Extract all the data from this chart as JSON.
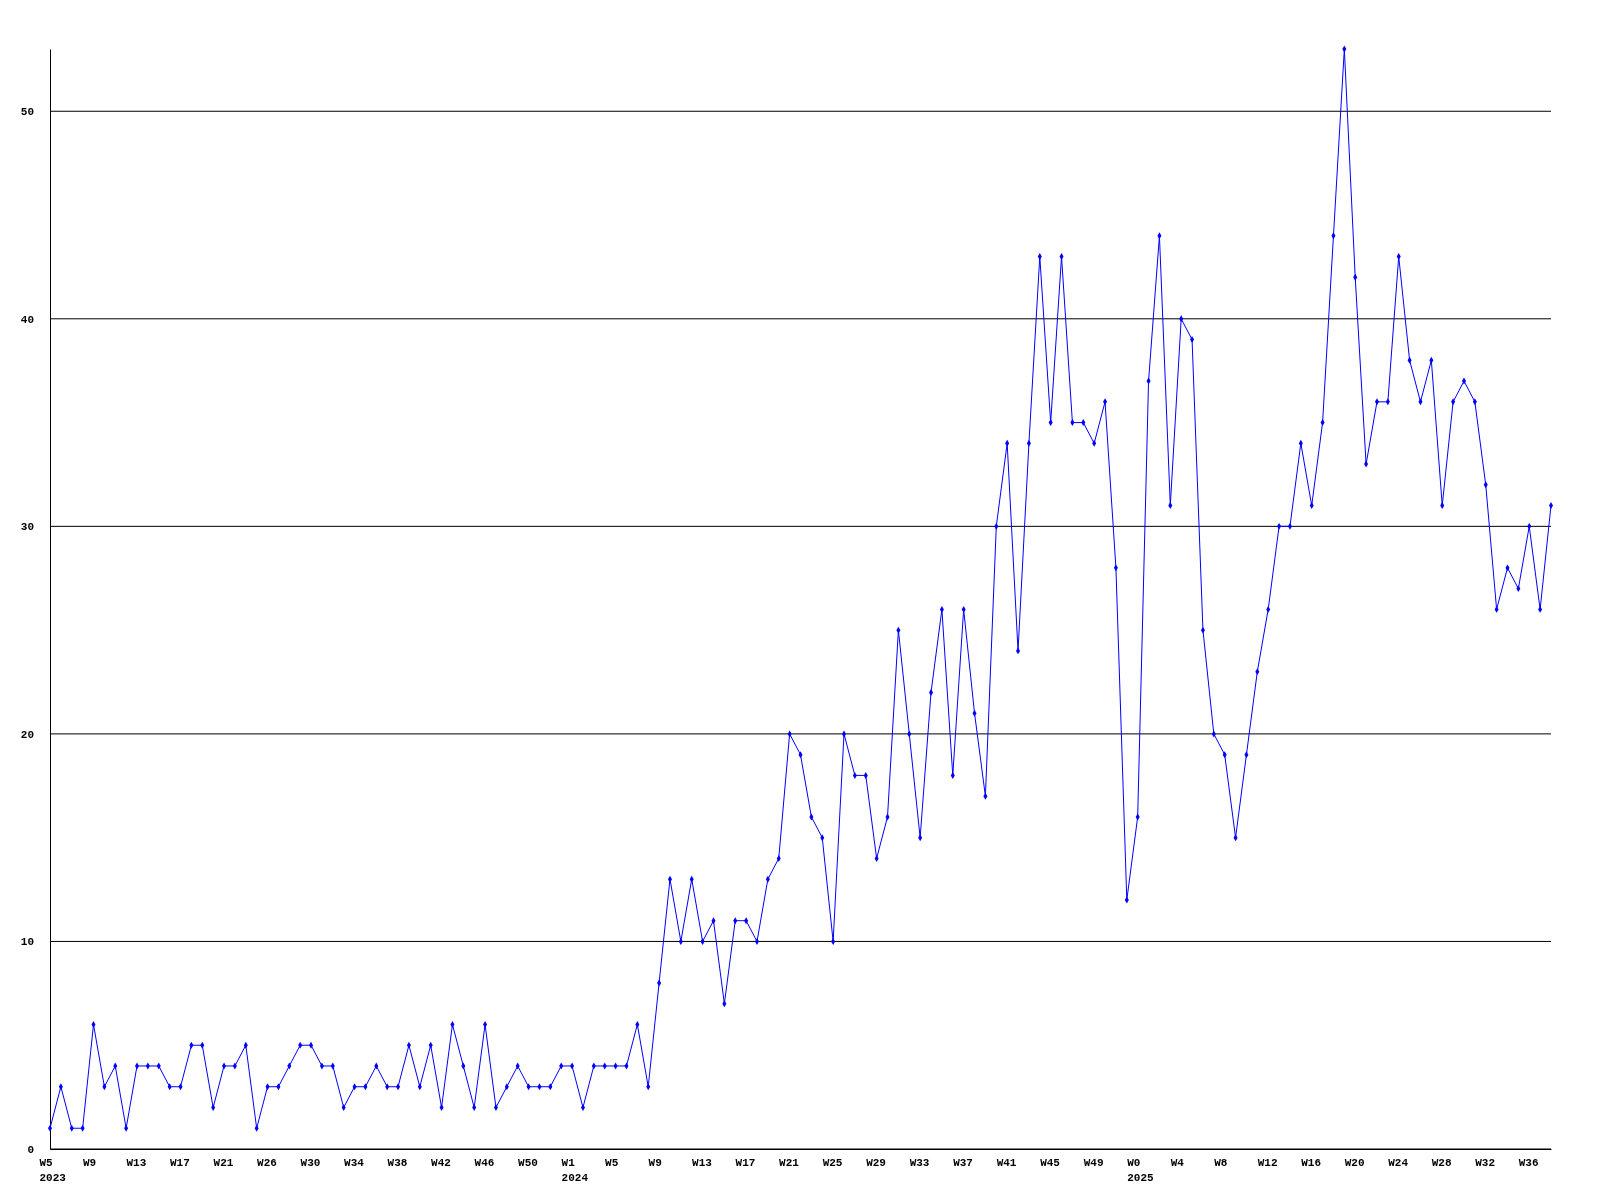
{
  "chart_data": {
    "type": "line",
    "categories": [
      "W5\n2023",
      null,
      null,
      null,
      "W9",
      null,
      null,
      null,
      "W13",
      null,
      null,
      null,
      "W17",
      null,
      null,
      null,
      "W21",
      null,
      null,
      null,
      "W26",
      null,
      null,
      null,
      "W30",
      null,
      null,
      null,
      "W34",
      null,
      null,
      null,
      "W38",
      null,
      null,
      null,
      "W42",
      null,
      null,
      null,
      "W46",
      null,
      null,
      null,
      "W50",
      null,
      null,
      null,
      "W1\n2024",
      null,
      null,
      null,
      "W5",
      null,
      null,
      null,
      "W9",
      null,
      null,
      null,
      "W13",
      null,
      null,
      null,
      "W17",
      null,
      null,
      null,
      "W21",
      null,
      null,
      null,
      "W25",
      null,
      null,
      null,
      "W29",
      null,
      null,
      null,
      "W33",
      null,
      null,
      null,
      "W37",
      null,
      null,
      null,
      "W41",
      null,
      null,
      null,
      "W45",
      null,
      null,
      null,
      "W49",
      null,
      null,
      null,
      "W0\n2025",
      null,
      null,
      null,
      "W4",
      null,
      null,
      null,
      "W8",
      null,
      null,
      null,
      "W12",
      null,
      null,
      null,
      "W16",
      null,
      null,
      null,
      "W20",
      null,
      null,
      null,
      "W24",
      null,
      null,
      null,
      "W28",
      null,
      null,
      null,
      "W32",
      null,
      null,
      null,
      "W36",
      null,
      null
    ],
    "series": [
      {
        "color": "#0000ff",
        "values": [
          1,
          3,
          1,
          1,
          6,
          3,
          4,
          1,
          4,
          4,
          4,
          3,
          3,
          5,
          5,
          2,
          4,
          4,
          5,
          1,
          3,
          3,
          4,
          5,
          5,
          4,
          4,
          2,
          3,
          3,
          4,
          3,
          3,
          5,
          3,
          5,
          2,
          6,
          4,
          2,
          6,
          2,
          3,
          4,
          3,
          3,
          3,
          4,
          4,
          2,
          4,
          4,
          4,
          4,
          6,
          3,
          8,
          13,
          10,
          13,
          10,
          11,
          7,
          11,
          11,
          10,
          13,
          14,
          20,
          19,
          16,
          15,
          10,
          20,
          18,
          18,
          14,
          16,
          25,
          20,
          15,
          22,
          26,
          18,
          26,
          21,
          17,
          30,
          34,
          24,
          34,
          43,
          35,
          43,
          35,
          35,
          34,
          36,
          28,
          12,
          16,
          37,
          44,
          31,
          40,
          39,
          25,
          20,
          19,
          15,
          19,
          23,
          26,
          30,
          30,
          34,
          31,
          35,
          44,
          53,
          42,
          33,
          36,
          36,
          43,
          38,
          36,
          38,
          31,
          36,
          37,
          36,
          32,
          26,
          28,
          27,
          30,
          26,
          31
        ]
      }
    ],
    "ylim": [
      0,
      53
    ],
    "yticks": [
      0,
      10,
      20,
      30,
      40,
      50
    ],
    "grid": "y",
    "marker": "diamond",
    "line_style": "solid"
  }
}
